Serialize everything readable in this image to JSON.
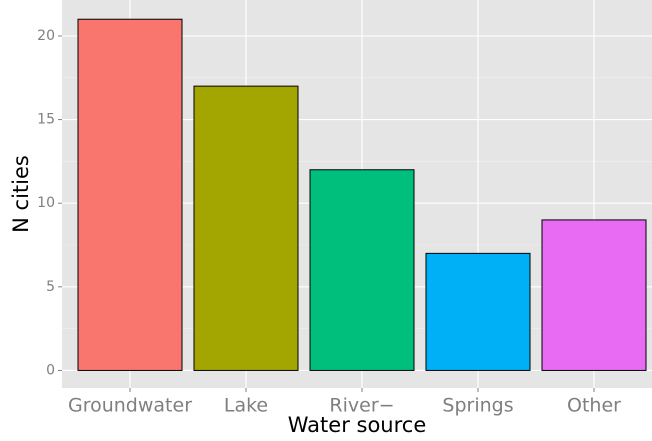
{
  "chart_data": {
    "type": "bar",
    "x_label": "Water source",
    "y_label": "N cities",
    "categories": [
      "Groundwater",
      "Lake",
      "River−",
      "Springs",
      "Other"
    ],
    "values": [
      21,
      17,
      12,
      7,
      9
    ],
    "colors": [
      "#F8766D",
      "#A3A500",
      "#00BF7D",
      "#00B0F6",
      "#E76BF3"
    ],
    "ylim": [
      -1.05,
      22.15
    ],
    "yticks": [
      0,
      5,
      10,
      15,
      20
    ],
    "grid": true
  }
}
